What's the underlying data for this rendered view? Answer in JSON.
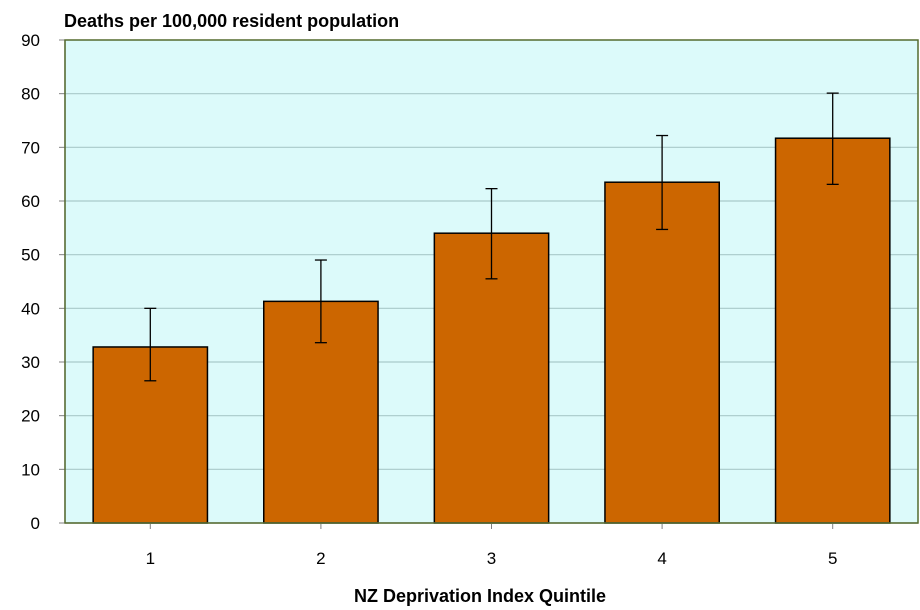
{
  "chart_data": {
    "type": "bar",
    "title": "Deaths per  100,000 resident population",
    "xlabel": "NZ Deprivation Index Quintile",
    "ylabel": "",
    "categories": [
      "1",
      "2",
      "3",
      "4",
      "5"
    ],
    "values": [
      32.8,
      41.3,
      54.0,
      63.5,
      71.7
    ],
    "error_low": [
      26.5,
      33.6,
      45.5,
      54.7,
      63.1
    ],
    "error_high": [
      40.0,
      49.0,
      62.3,
      72.2,
      80.1
    ],
    "ylim": [
      0,
      90
    ],
    "yticks": [
      0,
      10,
      20,
      30,
      40,
      50,
      60,
      70,
      80,
      90
    ],
    "grid": true,
    "legend": "none",
    "colors": {
      "bar": "#cc6600",
      "bar_border": "#000000",
      "plot_background": "#dcfafa",
      "gridline": "#a9c9c9",
      "plot_border": "#556b2f"
    }
  }
}
